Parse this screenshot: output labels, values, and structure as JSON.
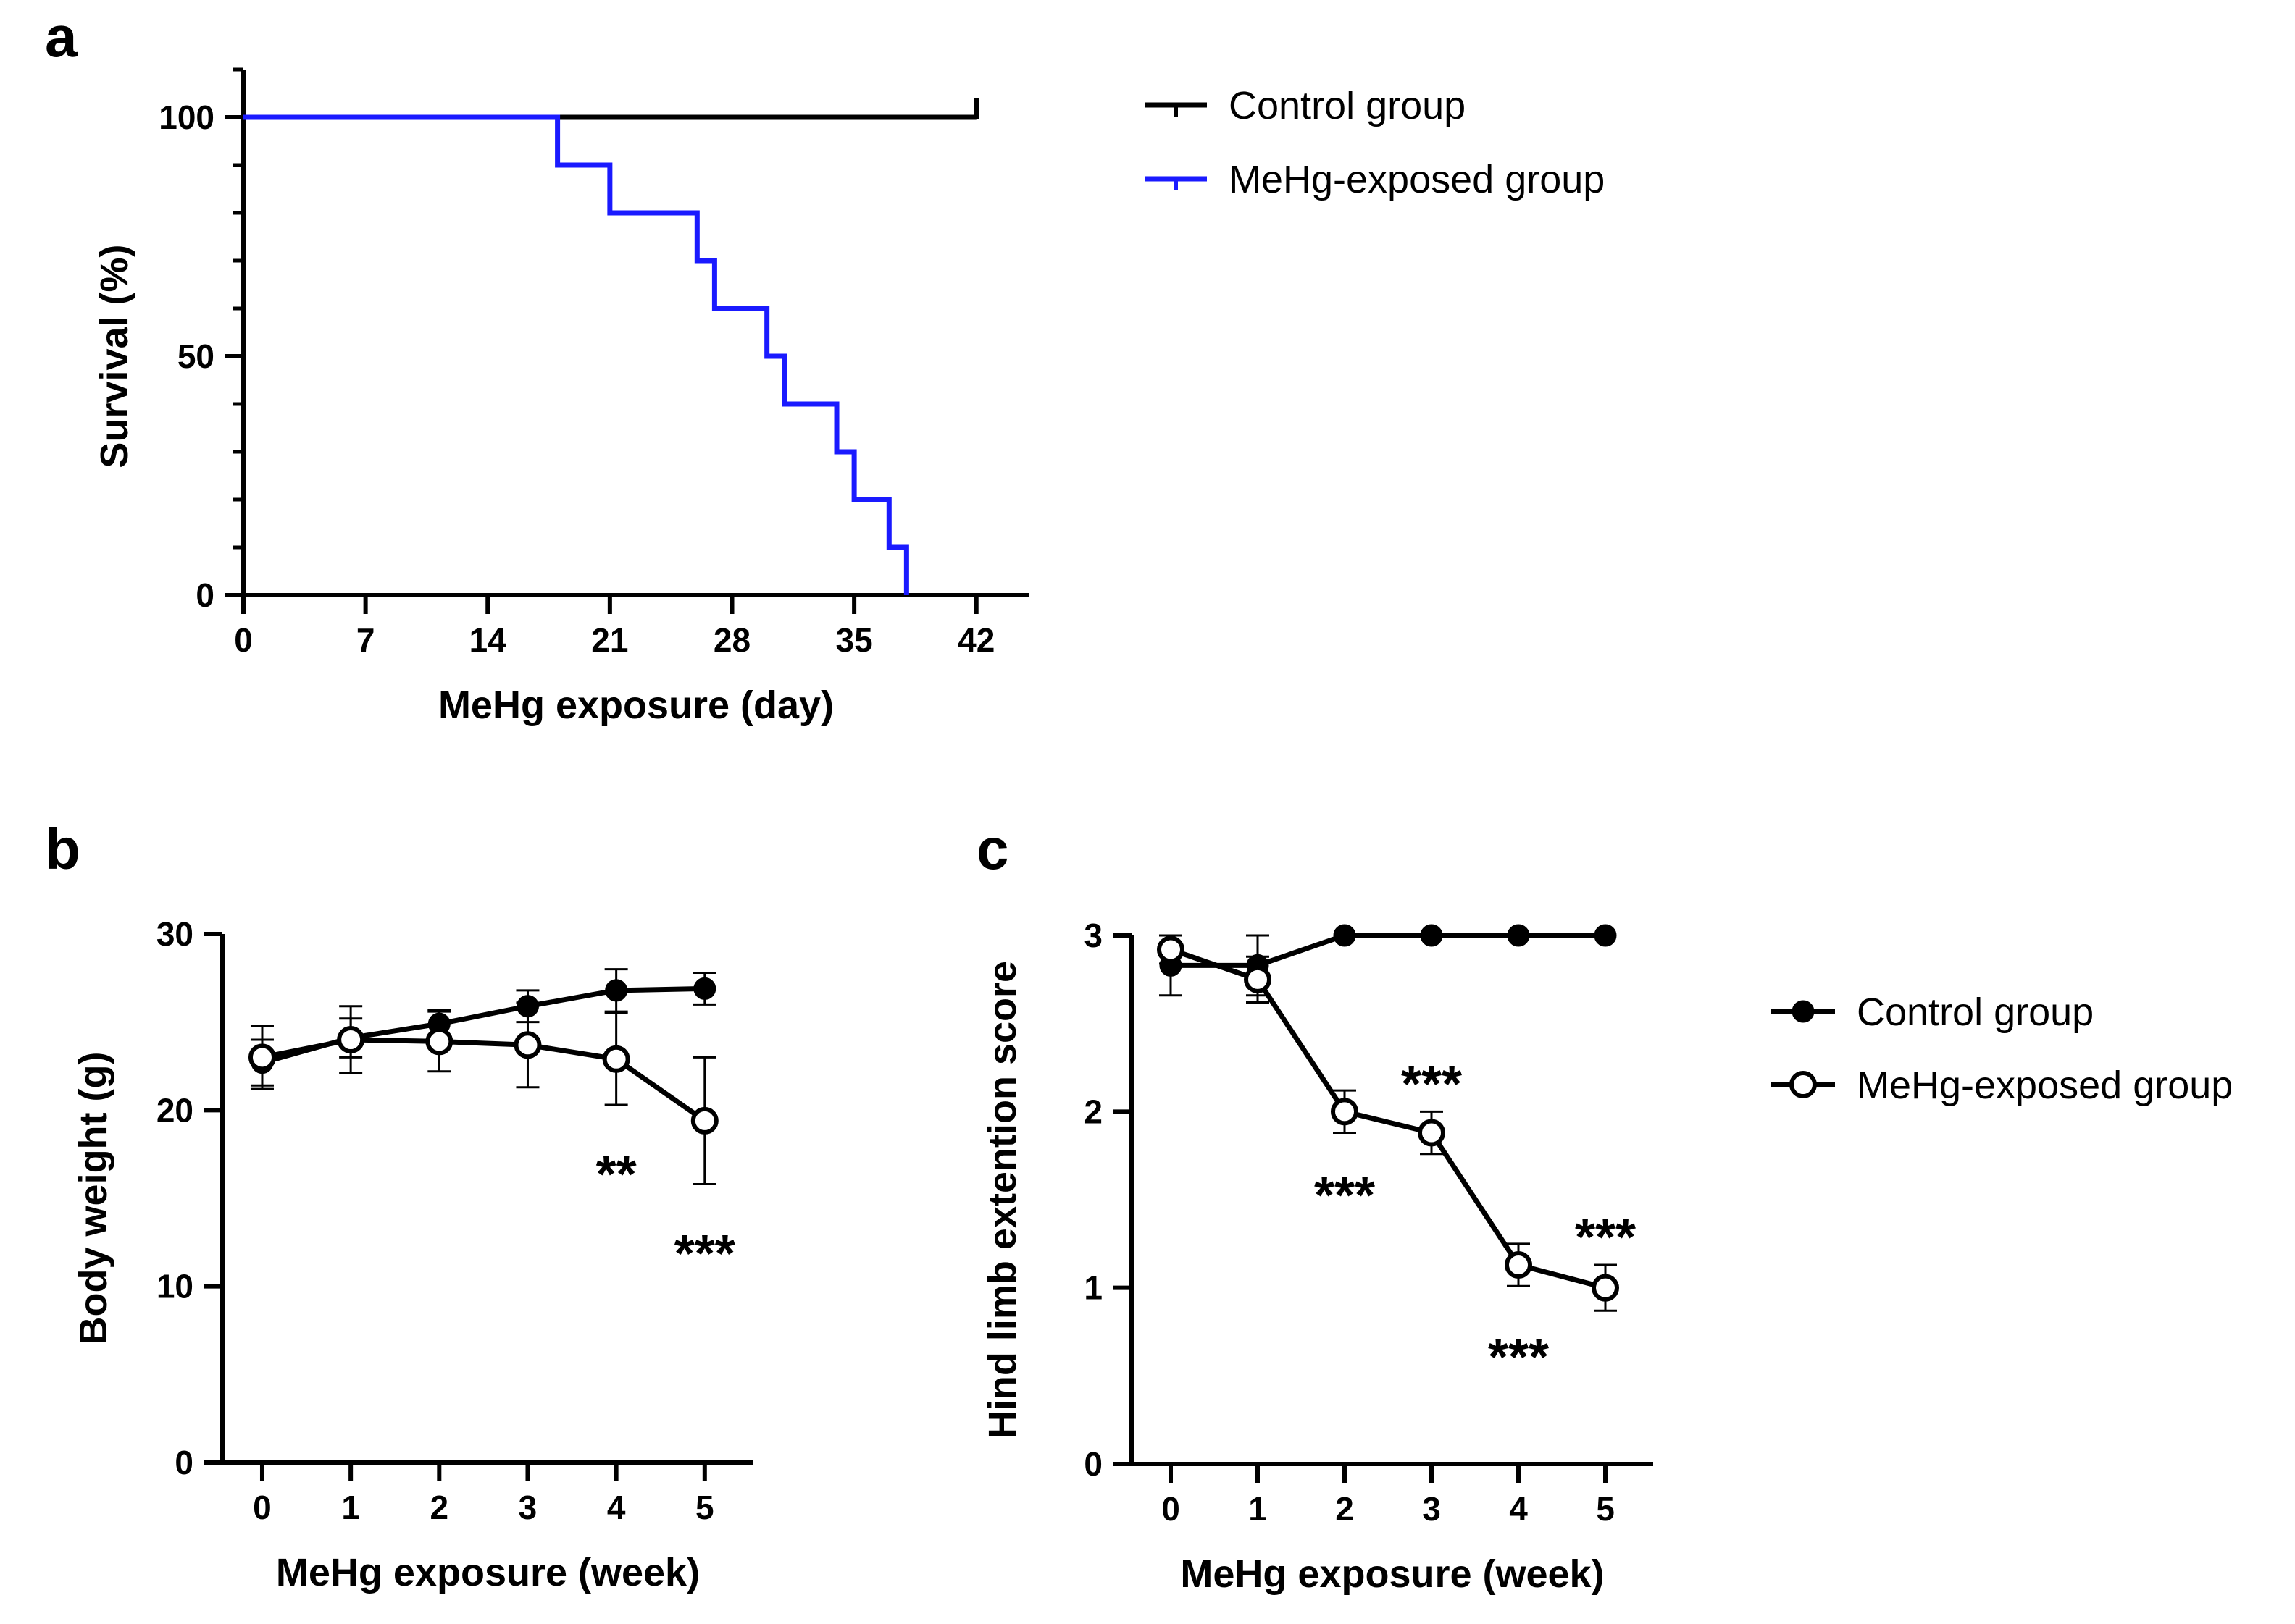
{
  "chart_data": [
    {
      "panel": "a",
      "type": "line",
      "subtype": "kaplan-meier step",
      "xlabel": "MeHg exposure (day)",
      "ylabel": "Survival (%)",
      "xlim": [
        0,
        45
      ],
      "ylim": [
        0,
        110
      ],
      "xticks": [
        0,
        7,
        14,
        21,
        28,
        35,
        42
      ],
      "yticks": [
        0,
        50,
        100
      ],
      "legend_position": "right",
      "series": [
        {
          "name": "Control group",
          "color": "#000000",
          "steps": [
            [
              0,
              100
            ],
            [
              42,
              100
            ]
          ],
          "censor_marks": [
            42
          ]
        },
        {
          "name": "MeHg-exposed group",
          "color": "#1a1aff",
          "steps": [
            [
              0,
              100
            ],
            [
              18,
              90
            ],
            [
              21,
              80
            ],
            [
              26,
              70
            ],
            [
              27,
              60
            ],
            [
              30,
              50
            ],
            [
              31,
              40
            ],
            [
              34,
              30
            ],
            [
              35,
              20
            ],
            [
              37,
              10
            ],
            [
              38,
              0
            ]
          ],
          "censor_marks": []
        }
      ]
    },
    {
      "panel": "b",
      "type": "line",
      "xlabel": "MeHg exposure (week)",
      "ylabel": "Body weight (g)",
      "xlim": [
        -0.45,
        5.55
      ],
      "ylim": [
        0,
        30
      ],
      "xticks": [
        0,
        1,
        2,
        3,
        4,
        5
      ],
      "yticks": [
        0,
        10,
        20,
        30
      ],
      "legend_position": "none",
      "series": [
        {
          "name": "Control group",
          "marker": "filled-circle",
          "x": [
            0,
            1,
            2,
            3,
            4,
            5
          ],
          "values": [
            22.7,
            24.1,
            24.9,
            25.9,
            26.8,
            26.9
          ],
          "error": [
            1.3,
            1.1,
            0.8,
            0.9,
            1.2,
            0.9
          ]
        },
        {
          "name": "MeHg-exposed group",
          "marker": "open-circle",
          "x": [
            0,
            1,
            2,
            3,
            4,
            5
          ],
          "values": [
            23.0,
            24.0,
            23.9,
            23.7,
            22.9,
            19.4
          ],
          "error": [
            1.8,
            1.9,
            1.7,
            2.4,
            2.6,
            3.6
          ]
        }
      ],
      "annotations": [
        {
          "text": "**",
          "x": 4,
          "y": 16.5
        },
        {
          "text": "***",
          "x": 5,
          "y": 12.0
        }
      ]
    },
    {
      "panel": "c",
      "type": "line",
      "xlabel": "MeHg exposure (week)",
      "ylabel": "Hind limb extention score",
      "xlim": [
        -0.45,
        5.55
      ],
      "ylim": [
        0,
        3
      ],
      "xticks": [
        0,
        1,
        2,
        3,
        4,
        5
      ],
      "yticks": [
        0,
        1,
        2,
        3
      ],
      "legend_position": "right",
      "series": [
        {
          "name": "Control group",
          "marker": "filled-circle",
          "x": [
            0,
            1,
            2,
            3,
            4,
            5
          ],
          "values": [
            2.83,
            2.83,
            3.0,
            3.0,
            3.0,
            3.0
          ],
          "error": [
            0.17,
            0.17,
            0,
            0,
            0,
            0
          ]
        },
        {
          "name": "MeHg-exposed group",
          "marker": "open-circle",
          "x": [
            0,
            1,
            2,
            3,
            4,
            5
          ],
          "values": [
            2.92,
            2.75,
            2.0,
            1.88,
            1.13,
            1.0
          ],
          "error": [
            0.08,
            0.13,
            0.12,
            0.12,
            0.12,
            0.13
          ]
        }
      ],
      "annotations": [
        {
          "text": "***",
          "x": 3.0,
          "y": 2.17
        },
        {
          "text": "***",
          "x": 2.0,
          "y": 1.54
        },
        {
          "text": "***",
          "x": 5.0,
          "y": 1.3
        },
        {
          "text": "***",
          "x": 4.0,
          "y": 0.62
        }
      ]
    }
  ]
}
